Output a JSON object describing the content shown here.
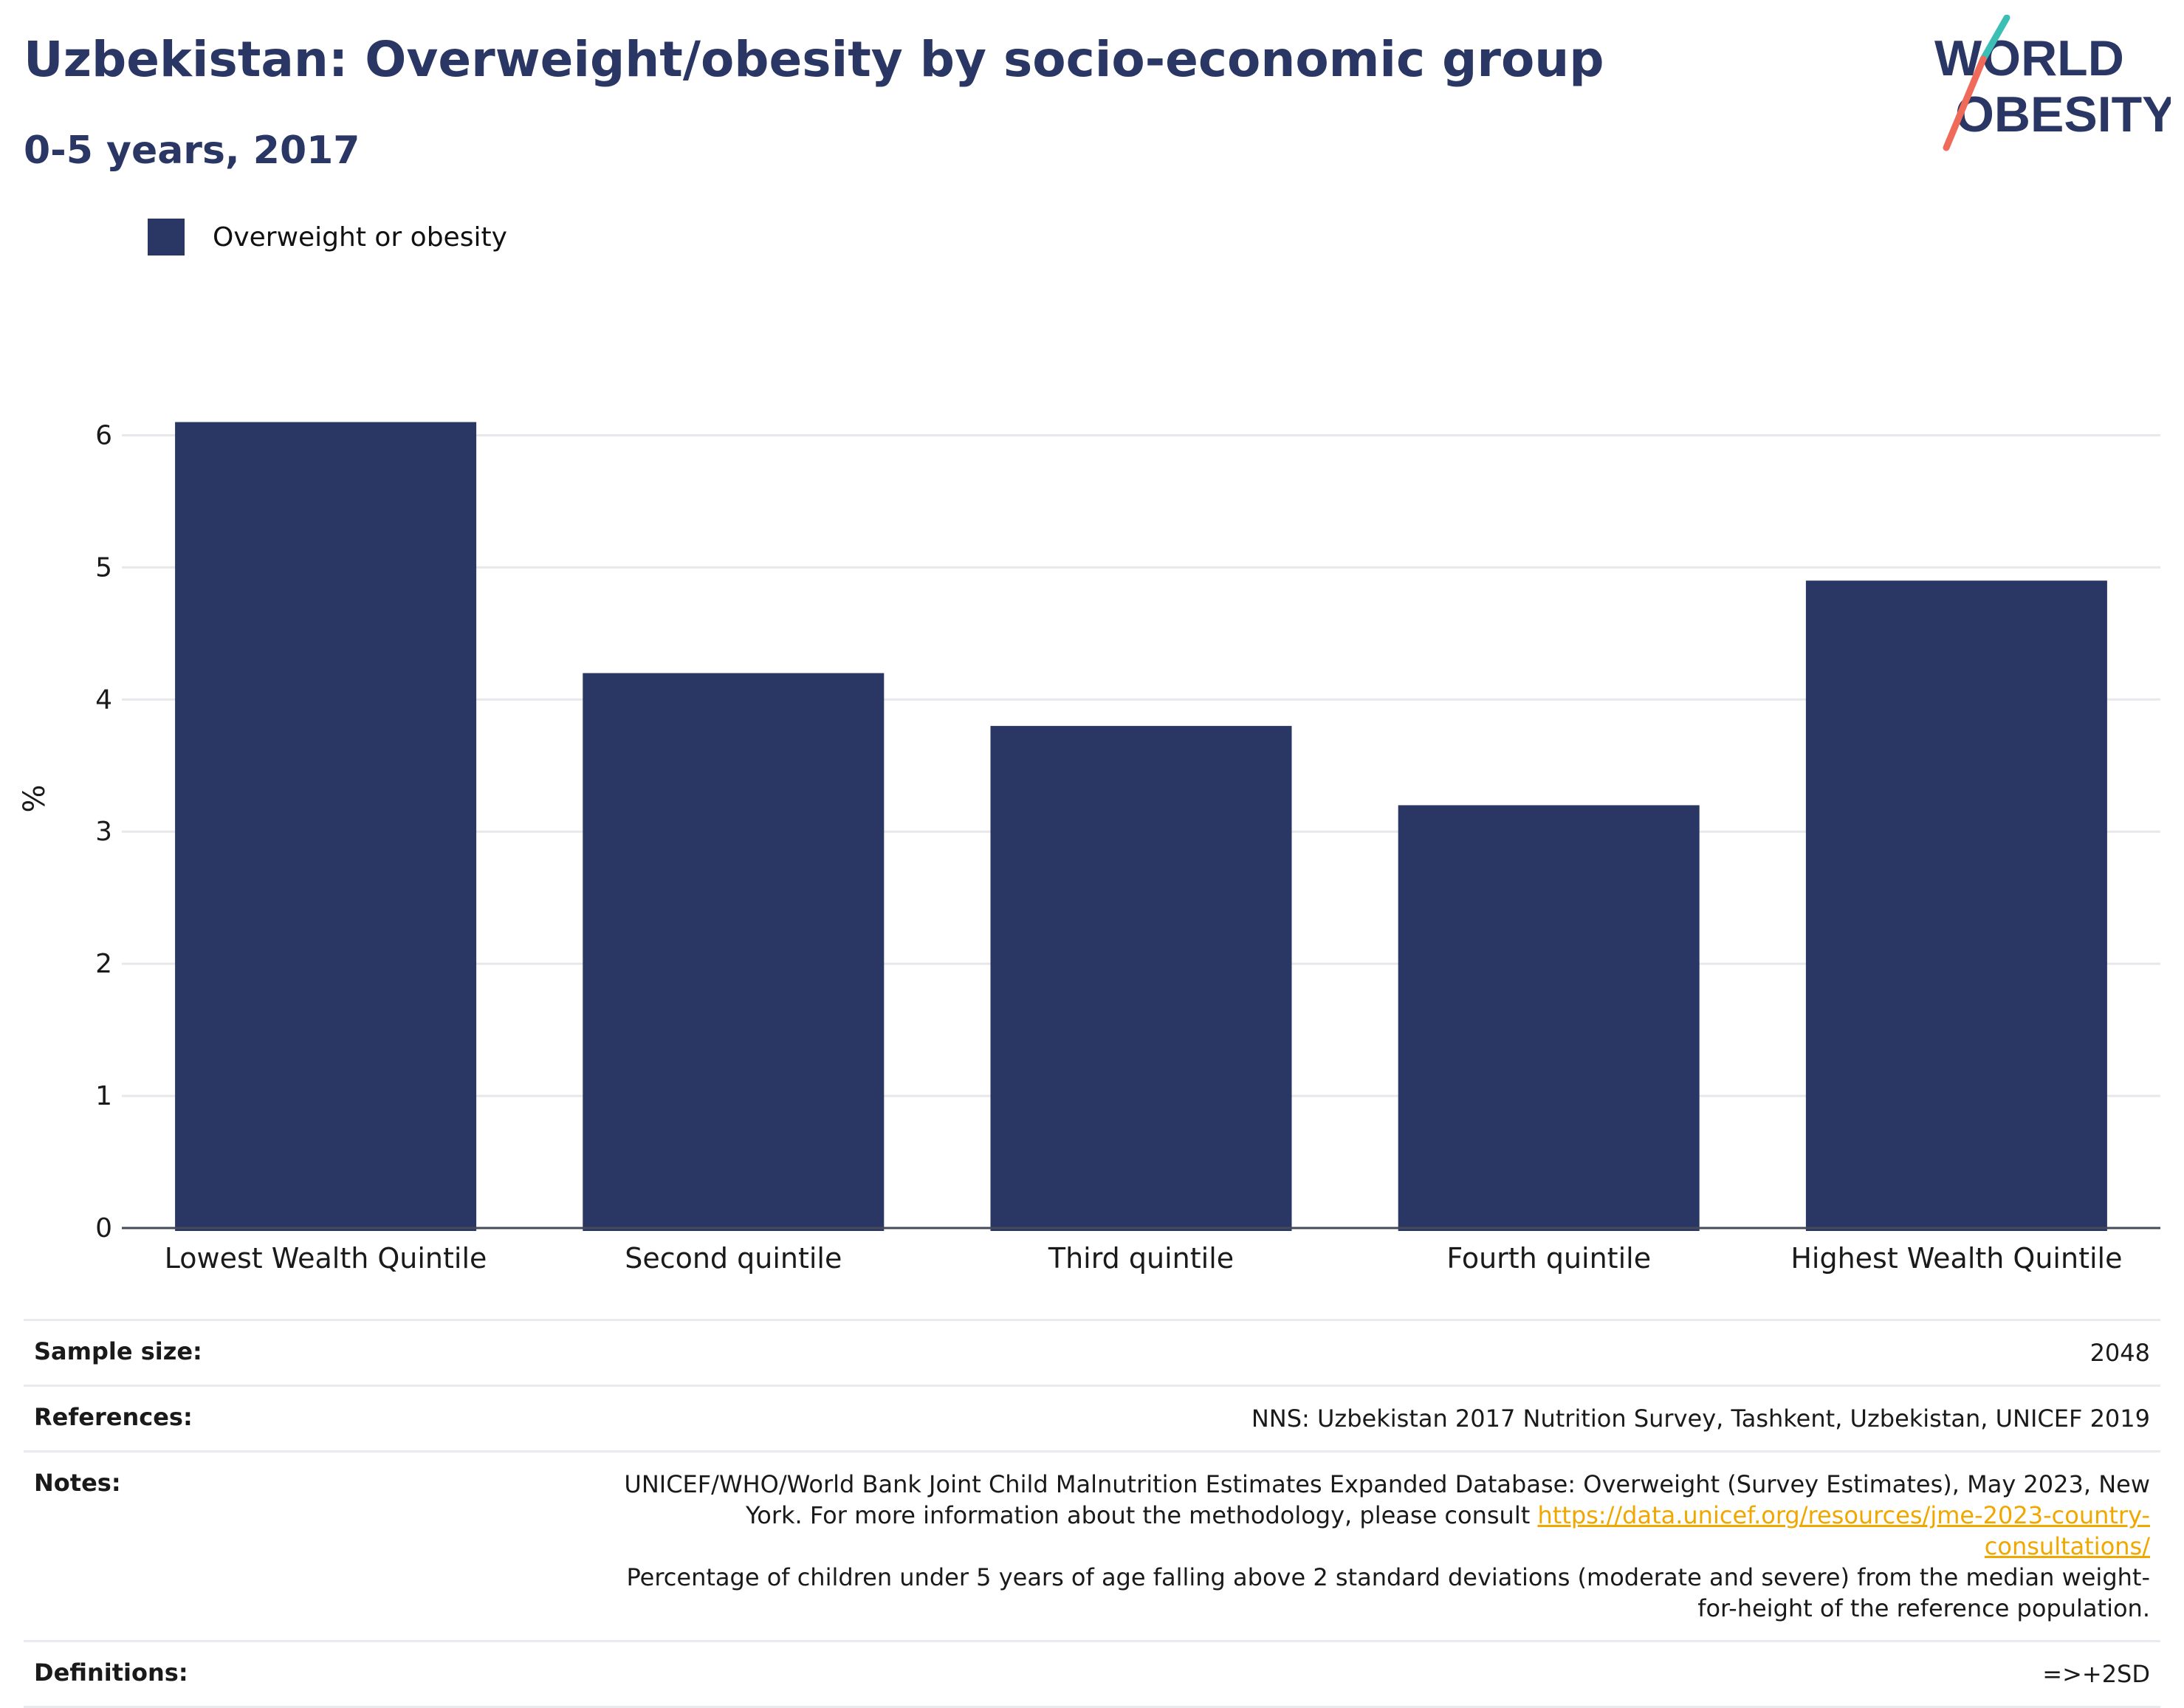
{
  "header": {
    "title": "Uzbekistan: Overweight/obesity by socio-economic group",
    "subtitle": "0-5 years, 2017"
  },
  "logo": {
    "line1": "WORLD",
    "line2": "OBESITY",
    "colors": {
      "text": "#2a3663",
      "teal": "#3bbfb5",
      "coral": "#f06a5a"
    }
  },
  "legend": {
    "label": "Overweight or obesity",
    "color": "#2a3663"
  },
  "chart_data": {
    "type": "bar",
    "categories": [
      "Lowest Wealth Quintile",
      "Second quintile",
      "Third quintile",
      "Fourth quintile",
      "Highest Wealth Quintile"
    ],
    "series": [
      {
        "name": "Overweight or obesity",
        "values": [
          6.1,
          4.2,
          3.8,
          3.2,
          4.9
        ],
        "color": "#2a3663"
      }
    ],
    "ylabel": "%",
    "ylim": [
      0,
      6.5
    ],
    "yticks": [
      0,
      1,
      2,
      3,
      4,
      5,
      6
    ],
    "grid": true
  },
  "info": {
    "sample_size_label": "Sample size:",
    "sample_size_value": "2048",
    "references_label": "References:",
    "references_value": "NNS: Uzbekistan 2017 Nutrition Survey, Tashkent, Uzbekistan, UNICEF 2019",
    "notes_label": "Notes:",
    "notes_text_1": "UNICEF/WHO/World Bank Joint Child Malnutrition Estimates Expanded Database: Overweight (Survey Estimates), May 2023, New York. For more information about the methodology, please consult ",
    "notes_link": "https://data.unicef.org/resources/jme-2023-country-consultations/",
    "notes_text_2": "Percentage of children under 5 years of age falling above 2 standard deviations (moderate and severe) from the median weight-for-height of the reference population.",
    "definitions_label": "Definitions:",
    "definitions_value": "=>+2SD"
  }
}
